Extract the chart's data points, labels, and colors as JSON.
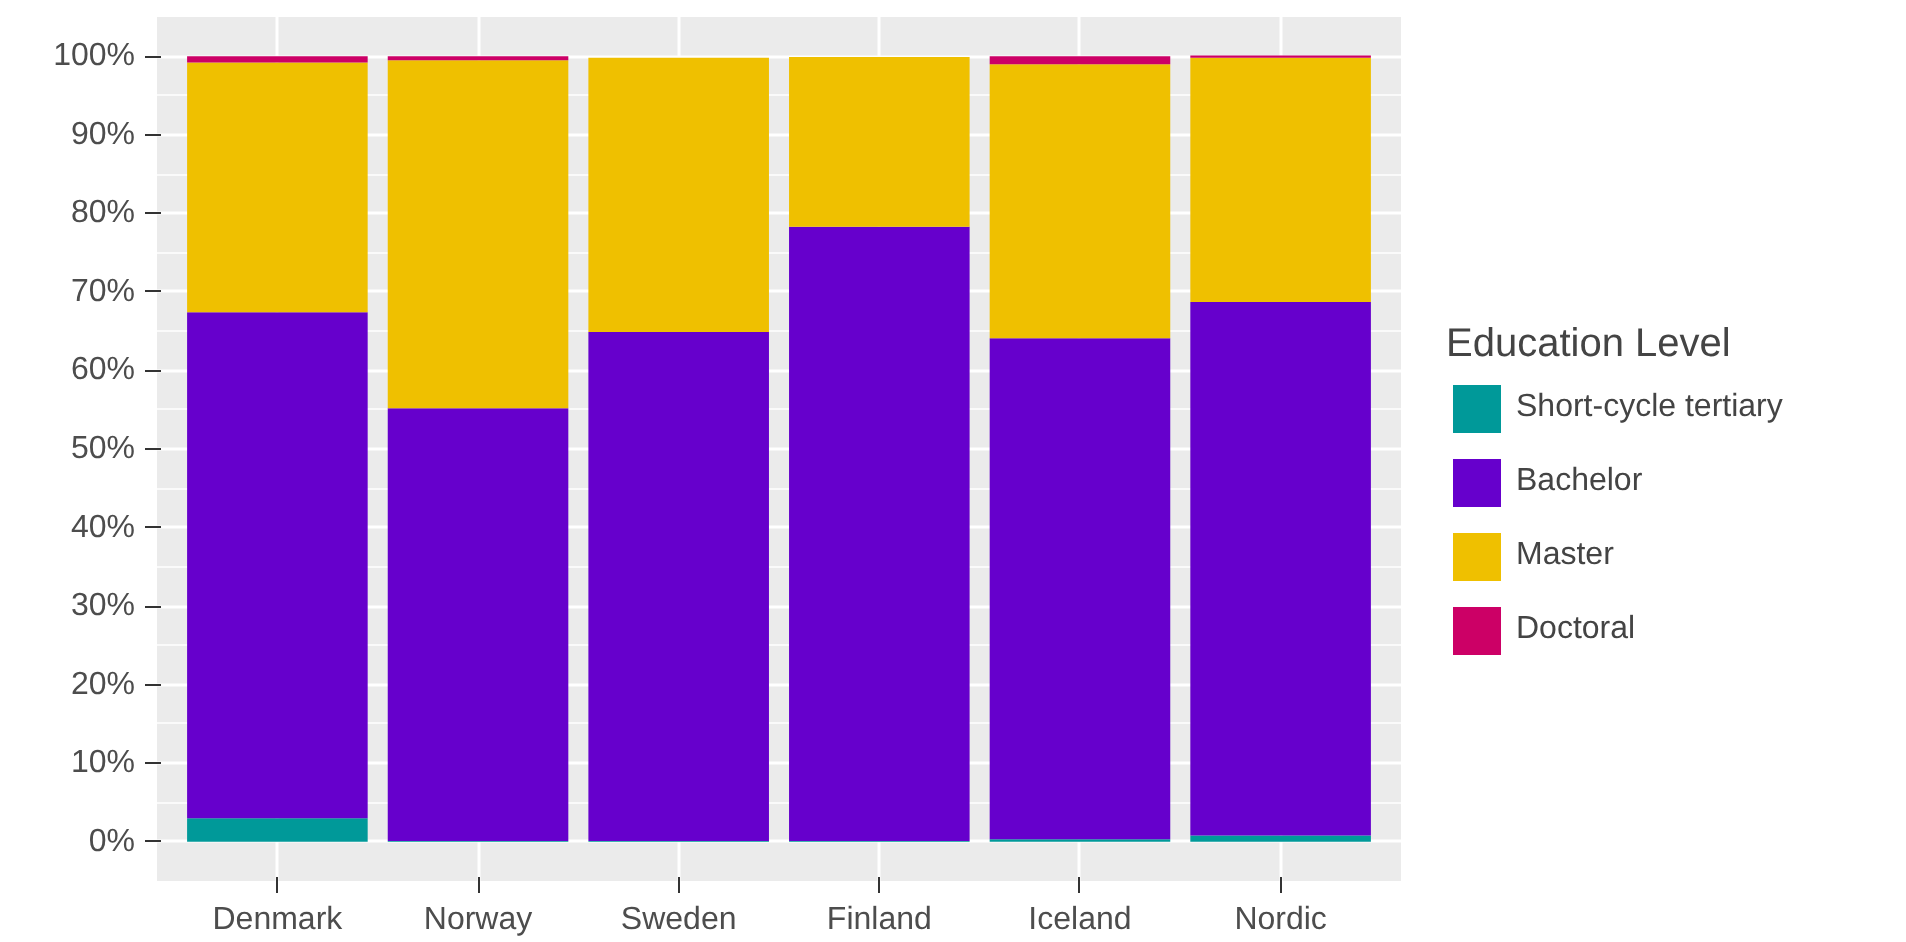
{
  "chart_data": {
    "type": "bar",
    "stacked": true,
    "legend_title": "Education Level",
    "legend": "right",
    "grid": true,
    "categories": [
      "Denmark",
      "Norway",
      "Sweden",
      "Finland",
      "Iceland",
      "Nordic"
    ],
    "series": [
      {
        "name": "Short-cycle tertiary",
        "color": "#009999",
        "values": [
          3.0,
          0.1,
          0.1,
          0.1,
          0.3,
          0.8
        ]
      },
      {
        "name": "Bachelor",
        "color": "#6600cc",
        "values": [
          64.4,
          55.1,
          64.8,
          78.2,
          63.8,
          67.9
        ]
      },
      {
        "name": "Master",
        "color": "#efc000",
        "values": [
          31.8,
          44.3,
          34.9,
          21.6,
          34.9,
          31.1
        ]
      },
      {
        "name": "Doctoral",
        "color": "#cc0066",
        "values": [
          0.8,
          0.5,
          null,
          null,
          1.0,
          0.3
        ]
      }
    ],
    "ylim": [
      -5,
      105
    ],
    "yticks": [
      {
        "value": 0,
        "label": "0%"
      },
      {
        "value": 10,
        "label": "10%"
      },
      {
        "value": 20,
        "label": "20%"
      },
      {
        "value": 30,
        "label": "30%"
      },
      {
        "value": 40,
        "label": "40%"
      },
      {
        "value": 50,
        "label": "50%"
      },
      {
        "value": 60,
        "label": "60%"
      },
      {
        "value": 70,
        "label": "70%"
      },
      {
        "value": 80,
        "label": "80%"
      },
      {
        "value": 90,
        "label": "90%"
      },
      {
        "value": 100,
        "label": "100%"
      }
    ]
  }
}
